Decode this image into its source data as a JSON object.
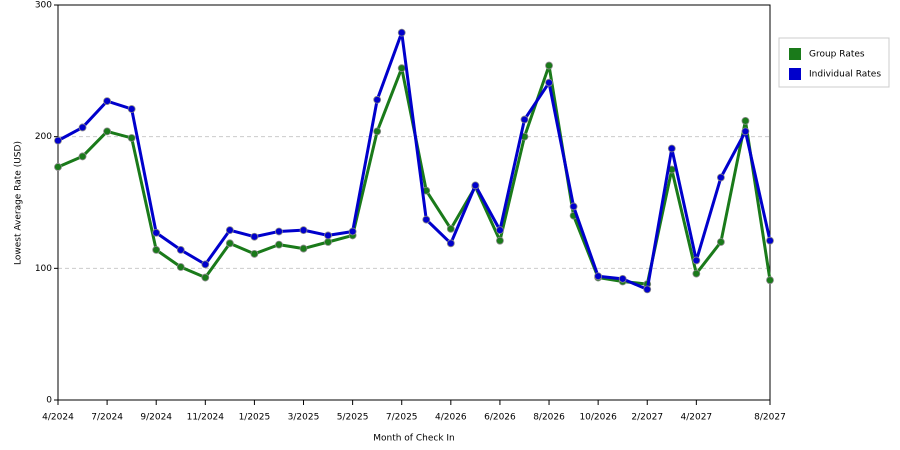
{
  "chart_data": {
    "type": "line",
    "x_label": "Month of Check In",
    "y_label": "Lowest Average Rate (USD)",
    "categories": [
      "4/2024",
      null,
      "7/2024",
      null,
      "9/2024",
      null,
      "11/2024",
      null,
      "1/2025",
      null,
      "3/2025",
      null,
      "5/2025",
      null,
      "7/2025",
      null,
      "4/2026",
      null,
      "6/2026",
      null,
      "8/2026",
      null,
      "10/2026",
      null,
      "2/2027",
      null,
      "4/2027",
      null,
      null,
      "8/2027"
    ],
    "series": [
      {
        "name": "Group Rates",
        "color": "#1a7a1a",
        "values": [
          177,
          185,
          204,
          199,
          114,
          101,
          93,
          119,
          111,
          118,
          115,
          120,
          125,
          204,
          252,
          159,
          130,
          162,
          121,
          200,
          254,
          140,
          93,
          90,
          88,
          175,
          96,
          120,
          212,
          91
        ]
      },
      {
        "name": "Individual Rates",
        "color": "#0000cc",
        "values": [
          197,
          207,
          227,
          221,
          127,
          114,
          103,
          129,
          124,
          128,
          129,
          125,
          128,
          228,
          279,
          137,
          119,
          163,
          129,
          213,
          241,
          147,
          94,
          92,
          84,
          191,
          106,
          169,
          204,
          121
        ]
      }
    ],
    "ylim": [
      0,
      300
    ],
    "yticks": [
      0,
      100,
      200,
      300
    ],
    "grid": true,
    "legend": "top-right"
  }
}
